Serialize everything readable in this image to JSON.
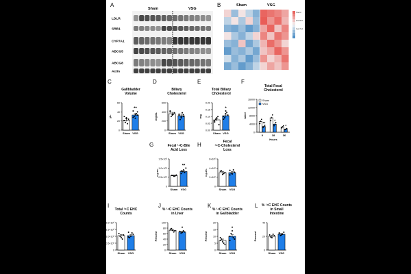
{
  "panel_letters": {
    "A": "A",
    "B": "B",
    "C": "C",
    "D": "D",
    "E": "E",
    "F": "F",
    "G": "G",
    "H": "H",
    "I": "I",
    "J": "J",
    "K": "K",
    "L": "L"
  },
  "western_blot": {
    "groups": [
      "Sham",
      "VSG"
    ],
    "proteins": [
      "LDLR",
      "SRB1",
      "CYP7A1",
      "ABCG5",
      "ABCG8",
      "Actin"
    ]
  },
  "heatmap": {
    "groups": [
      "Sham",
      "VSG"
    ],
    "scale_labels": [
      "Sterol",
      "Hsd3b7",
      "Cyp7a1"
    ]
  },
  "colors": {
    "sham": "#ffffff",
    "vsg": "#1f7ee8",
    "outline": "#000000",
    "heat_high": "#e8554f",
    "heat_low": "#3f86c2",
    "heat_mid": "#f4f4f4"
  },
  "chart_data": [
    {
      "id": "C",
      "type": "bar",
      "title": "Gallbladder Volume",
      "ylabel": "μL",
      "categories": [
        "Sham",
        "VSG"
      ],
      "values": [
        22,
        33
      ],
      "errors": [
        3,
        3
      ],
      "ylim": [
        0,
        60
      ],
      "yticks": [
        "0",
        "20",
        "40",
        "60"
      ],
      "significance": [
        "",
        "**"
      ],
      "points": [
        [
          30,
          27,
          24,
          17,
          14,
          21,
          25
        ],
        [
          28,
          35,
          40,
          30,
          36,
          42,
          26,
          33
        ]
      ]
    },
    {
      "id": "D",
      "type": "bar",
      "title": "Biliary Cholesterol",
      "ylabel": "mg/dL",
      "categories": [
        "Sham",
        "VSG"
      ],
      "values": [
        360,
        315
      ],
      "errors": [
        30,
        35
      ],
      "ylim": [
        0,
        600
      ],
      "yticks": [
        "0",
        "200",
        "400",
        "600"
      ],
      "significance": [
        "",
        ""
      ],
      "points": [
        [
          400,
          330,
          380,
          300,
          350,
          420,
          340
        ],
        [
          350,
          270,
          300,
          230,
          380,
          330,
          290,
          340
        ]
      ]
    },
    {
      "id": "E",
      "type": "bar",
      "title": "Total Biliary Cholesterol",
      "ylabel": "mg",
      "categories": [
        "Sham",
        "VSG"
      ],
      "values": [
        0.075,
        0.105
      ],
      "errors": [
        0.01,
        0.012
      ],
      "ylim": [
        0,
        0.2
      ],
      "yticks": [
        "0.00",
        "0.05",
        "0.10",
        "0.15",
        "0.20"
      ],
      "significance": [
        "",
        "*"
      ],
      "points": [
        [
          0.06,
          0.09,
          0.04,
          0.08,
          0.1,
          0.07
        ],
        [
          0.08,
          0.14,
          0.11,
          0.09,
          0.13,
          0.1,
          0.12
        ]
      ]
    },
    {
      "id": "F",
      "type": "bar",
      "title": "Total Fecal Cholesterol",
      "ylabel": "nmol",
      "xlabel": "Hours",
      "categories": [
        "0",
        "18",
        "36"
      ],
      "series": [
        {
          "name": "Sham",
          "values": [
            5200,
            7000,
            2600
          ],
          "errors": [
            600,
            500,
            400
          ]
        },
        {
          "name": "VSG",
          "values": [
            2800,
            3900,
            1500
          ],
          "errors": [
            400,
            500,
            300
          ]
        }
      ],
      "ylim": [
        0,
        16000
      ],
      "yticks": [
        "0",
        "4000",
        "8000",
        "12000",
        "16000"
      ],
      "significance": [
        "**",
        "*",
        "*"
      ]
    },
    {
      "id": "G",
      "type": "bar",
      "title": "Fecal ¹⁴C-Bile Acid Loss",
      "ylabel": "c.p.m.",
      "categories": [
        "Sham",
        "VSG"
      ],
      "values": [
        580000,
        810000
      ],
      "errors": [
        40000,
        70000
      ],
      "ylim": [
        0,
        1500000
      ],
      "yticks": [
        "0",
        "0.5×10⁶",
        "1.0×10⁶",
        "1.5×10⁶"
      ],
      "significance": [
        "",
        "**"
      ],
      "points": [
        [
          600000,
          550000,
          620000,
          590000,
          570000
        ],
        [
          700000,
          900000,
          1000000,
          800000,
          750000,
          850000
        ]
      ]
    },
    {
      "id": "H",
      "type": "bar",
      "title": "Fecal ¹⁴C-Cholesterol Loss",
      "ylabel": "c.p.m.",
      "categories": [
        "Sham",
        "VSG"
      ],
      "values": [
        3000000,
        3000000
      ],
      "errors": [
        250000,
        250000
      ],
      "ylim": [
        0,
        6000000
      ],
      "yticks": [
        "0",
        "2×10⁶",
        "4×10⁶",
        "6×10⁶"
      ],
      "significance": [
        "",
        ""
      ],
      "points": [
        [
          3300000,
          2600000,
          3000000,
          3400000,
          2800000
        ],
        [
          3500000,
          2700000,
          3100000,
          2900000,
          3600000,
          2500000
        ]
      ]
    },
    {
      "id": "I",
      "type": "bar",
      "title": "Total ¹⁴C EHC Counts",
      "ylabel": "",
      "categories": [
        "Sham",
        "VSG"
      ],
      "values": [
        1050000,
        1050000
      ],
      "errors": [
        80000,
        90000
      ],
      "ylim": [
        0,
        2000000
      ],
      "yticks": [
        "0",
        "0.5×10⁶",
        "1.0×10⁶",
        "1.5×10⁶",
        "2.0×10⁶"
      ],
      "significance": [
        "",
        ""
      ],
      "points": [
        [
          1200000,
          900000,
          1100000,
          1000000,
          800000
        ],
        [
          1300000,
          1000000,
          1150000,
          900000,
          1250000,
          950000
        ]
      ]
    },
    {
      "id": "J",
      "type": "bar",
      "title": "% ¹⁴C EHC Counts in Liver",
      "ylabel": "Percent",
      "categories": [
        "Sham",
        "VSG"
      ],
      "values": [
        72,
        66
      ],
      "errors": [
        3,
        2
      ],
      "ylim": [
        0,
        100
      ],
      "yticks": [
        "0",
        "20",
        "40",
        "60",
        "80",
        "100"
      ],
      "significance": [
        "",
        "*"
      ],
      "points": [
        [
          76,
          72,
          70,
          78,
          66
        ],
        [
          68,
          64,
          66,
          62,
          70,
          67
        ]
      ]
    },
    {
      "id": "K",
      "type": "bar",
      "title": "% ¹⁴C EHC Counts in Gallbladder",
      "ylabel": "Percent",
      "categories": [
        "Sham",
        "VSG"
      ],
      "values": [
        7,
        10
      ],
      "errors": [
        1,
        1.2
      ],
      "ylim": [
        0,
        20
      ],
      "yticks": [
        "0",
        "5",
        "10",
        "15",
        "20"
      ],
      "significance": [
        "",
        "*"
      ],
      "points": [
        [
          9,
          6,
          4,
          8,
          5,
          7
        ],
        [
          10,
          14,
          8,
          12,
          9,
          7
        ]
      ]
    },
    {
      "id": "L",
      "type": "bar",
      "title": "% ¹⁴C EHC Counts in Small Intestine",
      "ylabel": "Percent",
      "categories": [
        "Sham",
        "VSG"
      ],
      "values": [
        20,
        23
      ],
      "errors": [
        1.5,
        1.5
      ],
      "ylim": [
        0,
        40
      ],
      "yticks": [
        "0",
        "20",
        "40"
      ],
      "significance": [
        "",
        ""
      ],
      "points": [
        [
          22,
          18,
          21,
          19,
          23
        ],
        [
          24,
          22,
          26,
          21,
          23,
          25
        ]
      ]
    }
  ]
}
